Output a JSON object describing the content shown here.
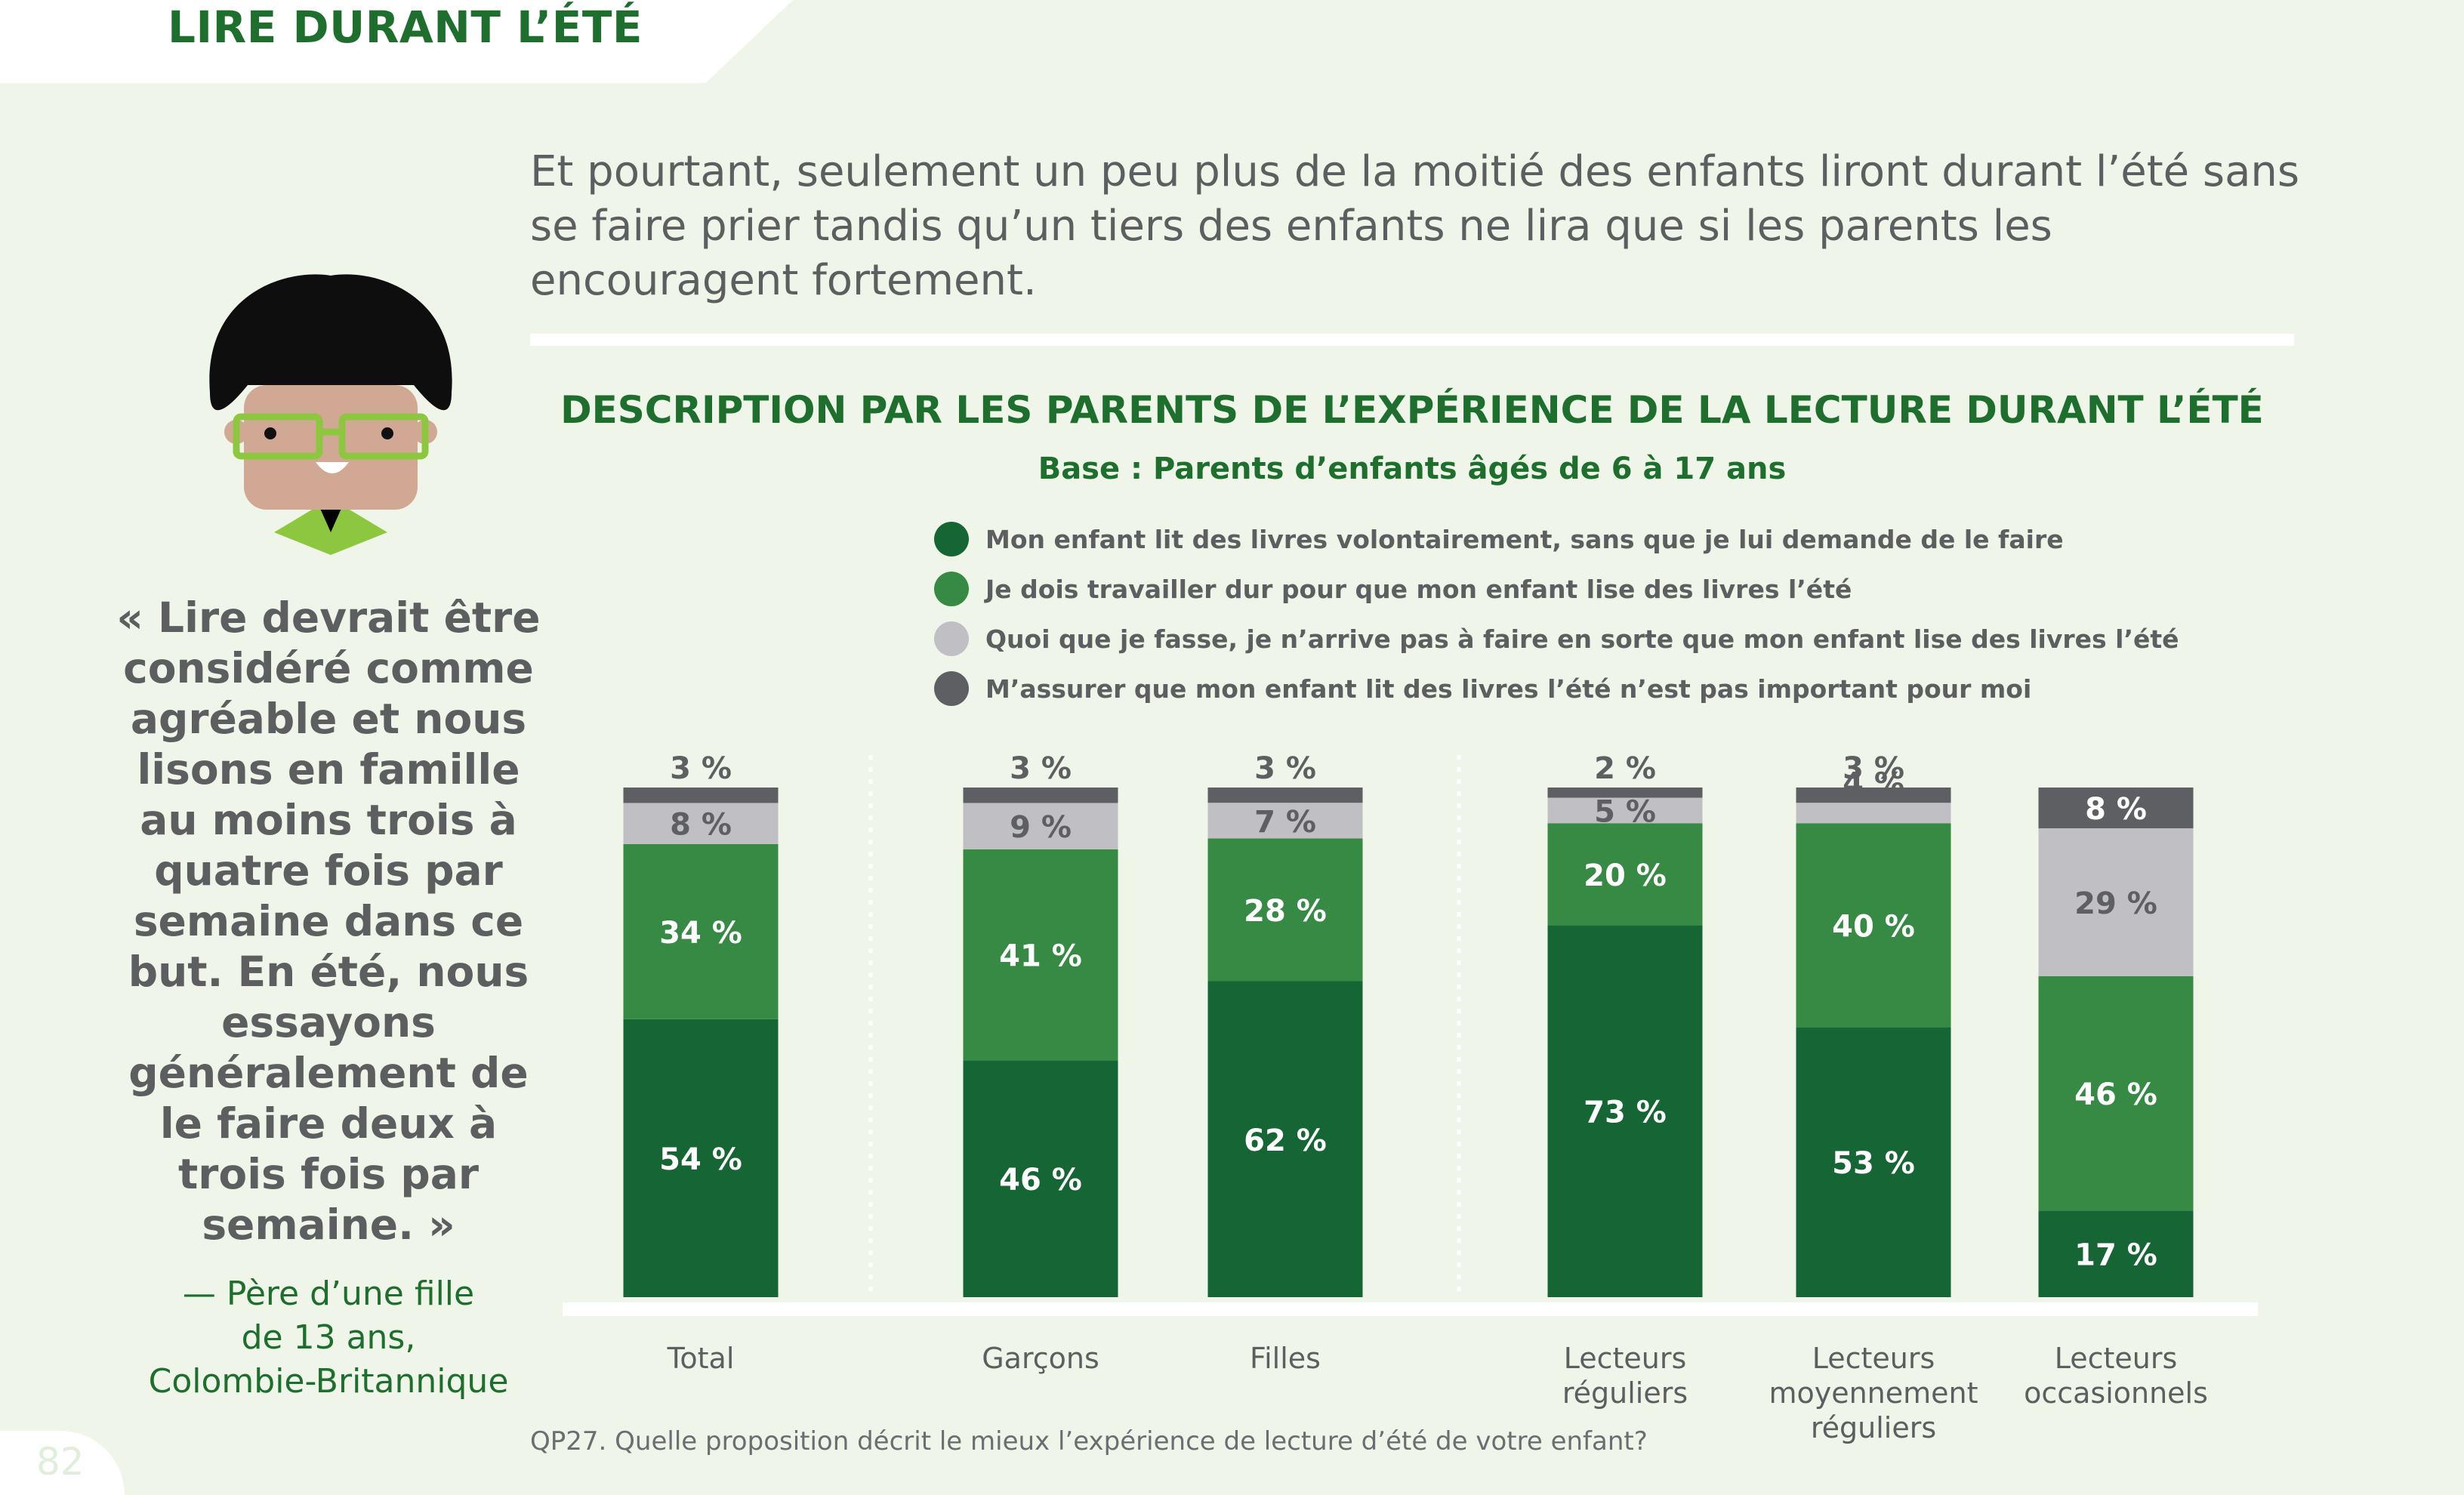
{
  "page": {
    "section_title": "LIRE DURANT L’ÉTÉ",
    "intro_text": "Et pourtant, seulement un peu plus de la moitié des enfants liront durant l’été sans se faire prier tandis qu’un tiers des enfants ne lira que si les parents les encouragent fortement.",
    "quote": "« Lire devrait être considéré comme agréable et nous lisons en famille au moins trois à quatre fois par semaine dans ce but. En été, nous essayons généralement de le faire deux à trois fois par semaine. »",
    "attribution": [
      "— Père d’une fille",
      "de 13 ans,",
      "Colombie-Britannique"
    ],
    "page_number": "82",
    "footnote": "QP27. Quelle proposition décrit le mieux l’expérience de lecture d’été de votre enfant?"
  },
  "colors": {
    "dark_green": "#166534",
    "green": "#368a43",
    "light_gray": "#c0bfc4",
    "dark_gray": "#5e5f62",
    "title_green": "#1e6e2e",
    "text_gray": "#5d5e60"
  },
  "chart_data": {
    "type": "bar",
    "stacked": true,
    "title": "DESCRIPTION PAR LES PARENTS DE L’EXPÉRIENCE DE LA LECTURE DURANT L’ÉTÉ",
    "subtitle": "Base : Parents d’enfants âgés de 6 à 17 ans",
    "categories": [
      [
        "Total"
      ],
      [
        "Garçons"
      ],
      [
        "Filles"
      ],
      [
        "Lecteurs",
        "réguliers"
      ],
      [
        "Lecteurs",
        "moyennement",
        "réguliers"
      ],
      [
        "Lecteurs",
        "occasionnels"
      ]
    ],
    "groups": [
      [
        0
      ],
      [
        1,
        2
      ],
      [
        3,
        4,
        5
      ]
    ],
    "series": [
      {
        "name": "Mon enfant lit des livres volontairement, sans que je lui demande de le faire",
        "color": "#166534",
        "values": [
          54,
          46,
          62,
          73,
          53,
          17
        ],
        "labels": [
          "54 %",
          "46 %",
          "62 %",
          "73 %",
          "53 %",
          "17 %"
        ]
      },
      {
        "name": "Je dois travailler dur pour que mon enfant lise des livres l’été",
        "color": "#368a43",
        "values": [
          34,
          41,
          28,
          20,
          40,
          46
        ],
        "labels": [
          "34 %",
          "41 %",
          "28 %",
          "20 %",
          "40 %",
          "46 %"
        ]
      },
      {
        "name": "Quoi que je fasse, je n’arrive pas à faire en sorte que mon enfant lise des livres l’été",
        "color": "#c0bfc4",
        "values": [
          8,
          9,
          7,
          5,
          4,
          29
        ],
        "labels": [
          "8 %",
          "9 %",
          "7 %",
          "5 %",
          "4 %",
          "29 %"
        ]
      },
      {
        "name": "M’assurer que mon enfant lit des livres l’été n’est pas important pour moi",
        "color": "#5e5f62",
        "values": [
          3,
          3,
          3,
          2,
          3,
          8
        ],
        "labels": [
          "3 %",
          "3 %",
          "3 %",
          "2 %",
          "3 %",
          "8 %"
        ]
      }
    ],
    "legend_position": "top",
    "grid": false
  }
}
